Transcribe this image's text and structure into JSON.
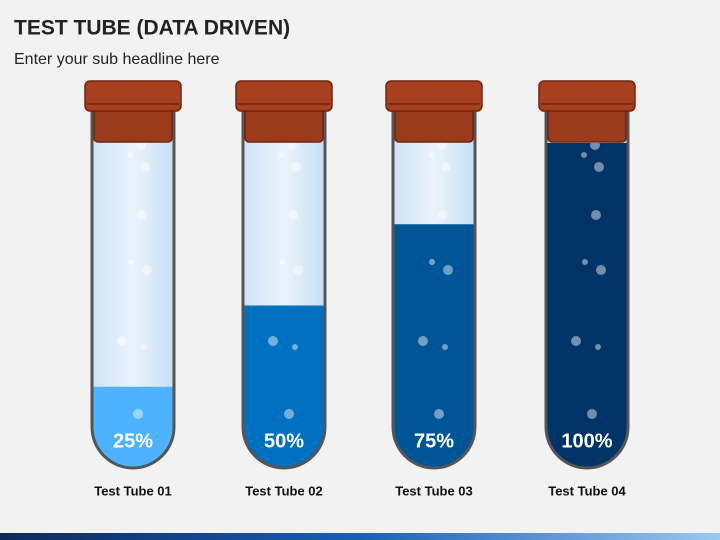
{
  "chart_data": {
    "type": "test-tube",
    "title": "TEST TUBE (DATA DRIVEN)",
    "subtitle": "Enter your sub headline here",
    "categories": [
      "Test Tube 01",
      "Test Tube 02",
      "Test Tube 03",
      "Test Tube 04"
    ],
    "values": [
      25,
      50,
      75,
      100
    ],
    "value_labels": [
      "25%",
      "50%",
      "75%",
      "100%"
    ],
    "colors": [
      "#4db3ff",
      "#0070c0",
      "#005597",
      "#003366"
    ],
    "ylim": [
      0,
      100
    ]
  }
}
